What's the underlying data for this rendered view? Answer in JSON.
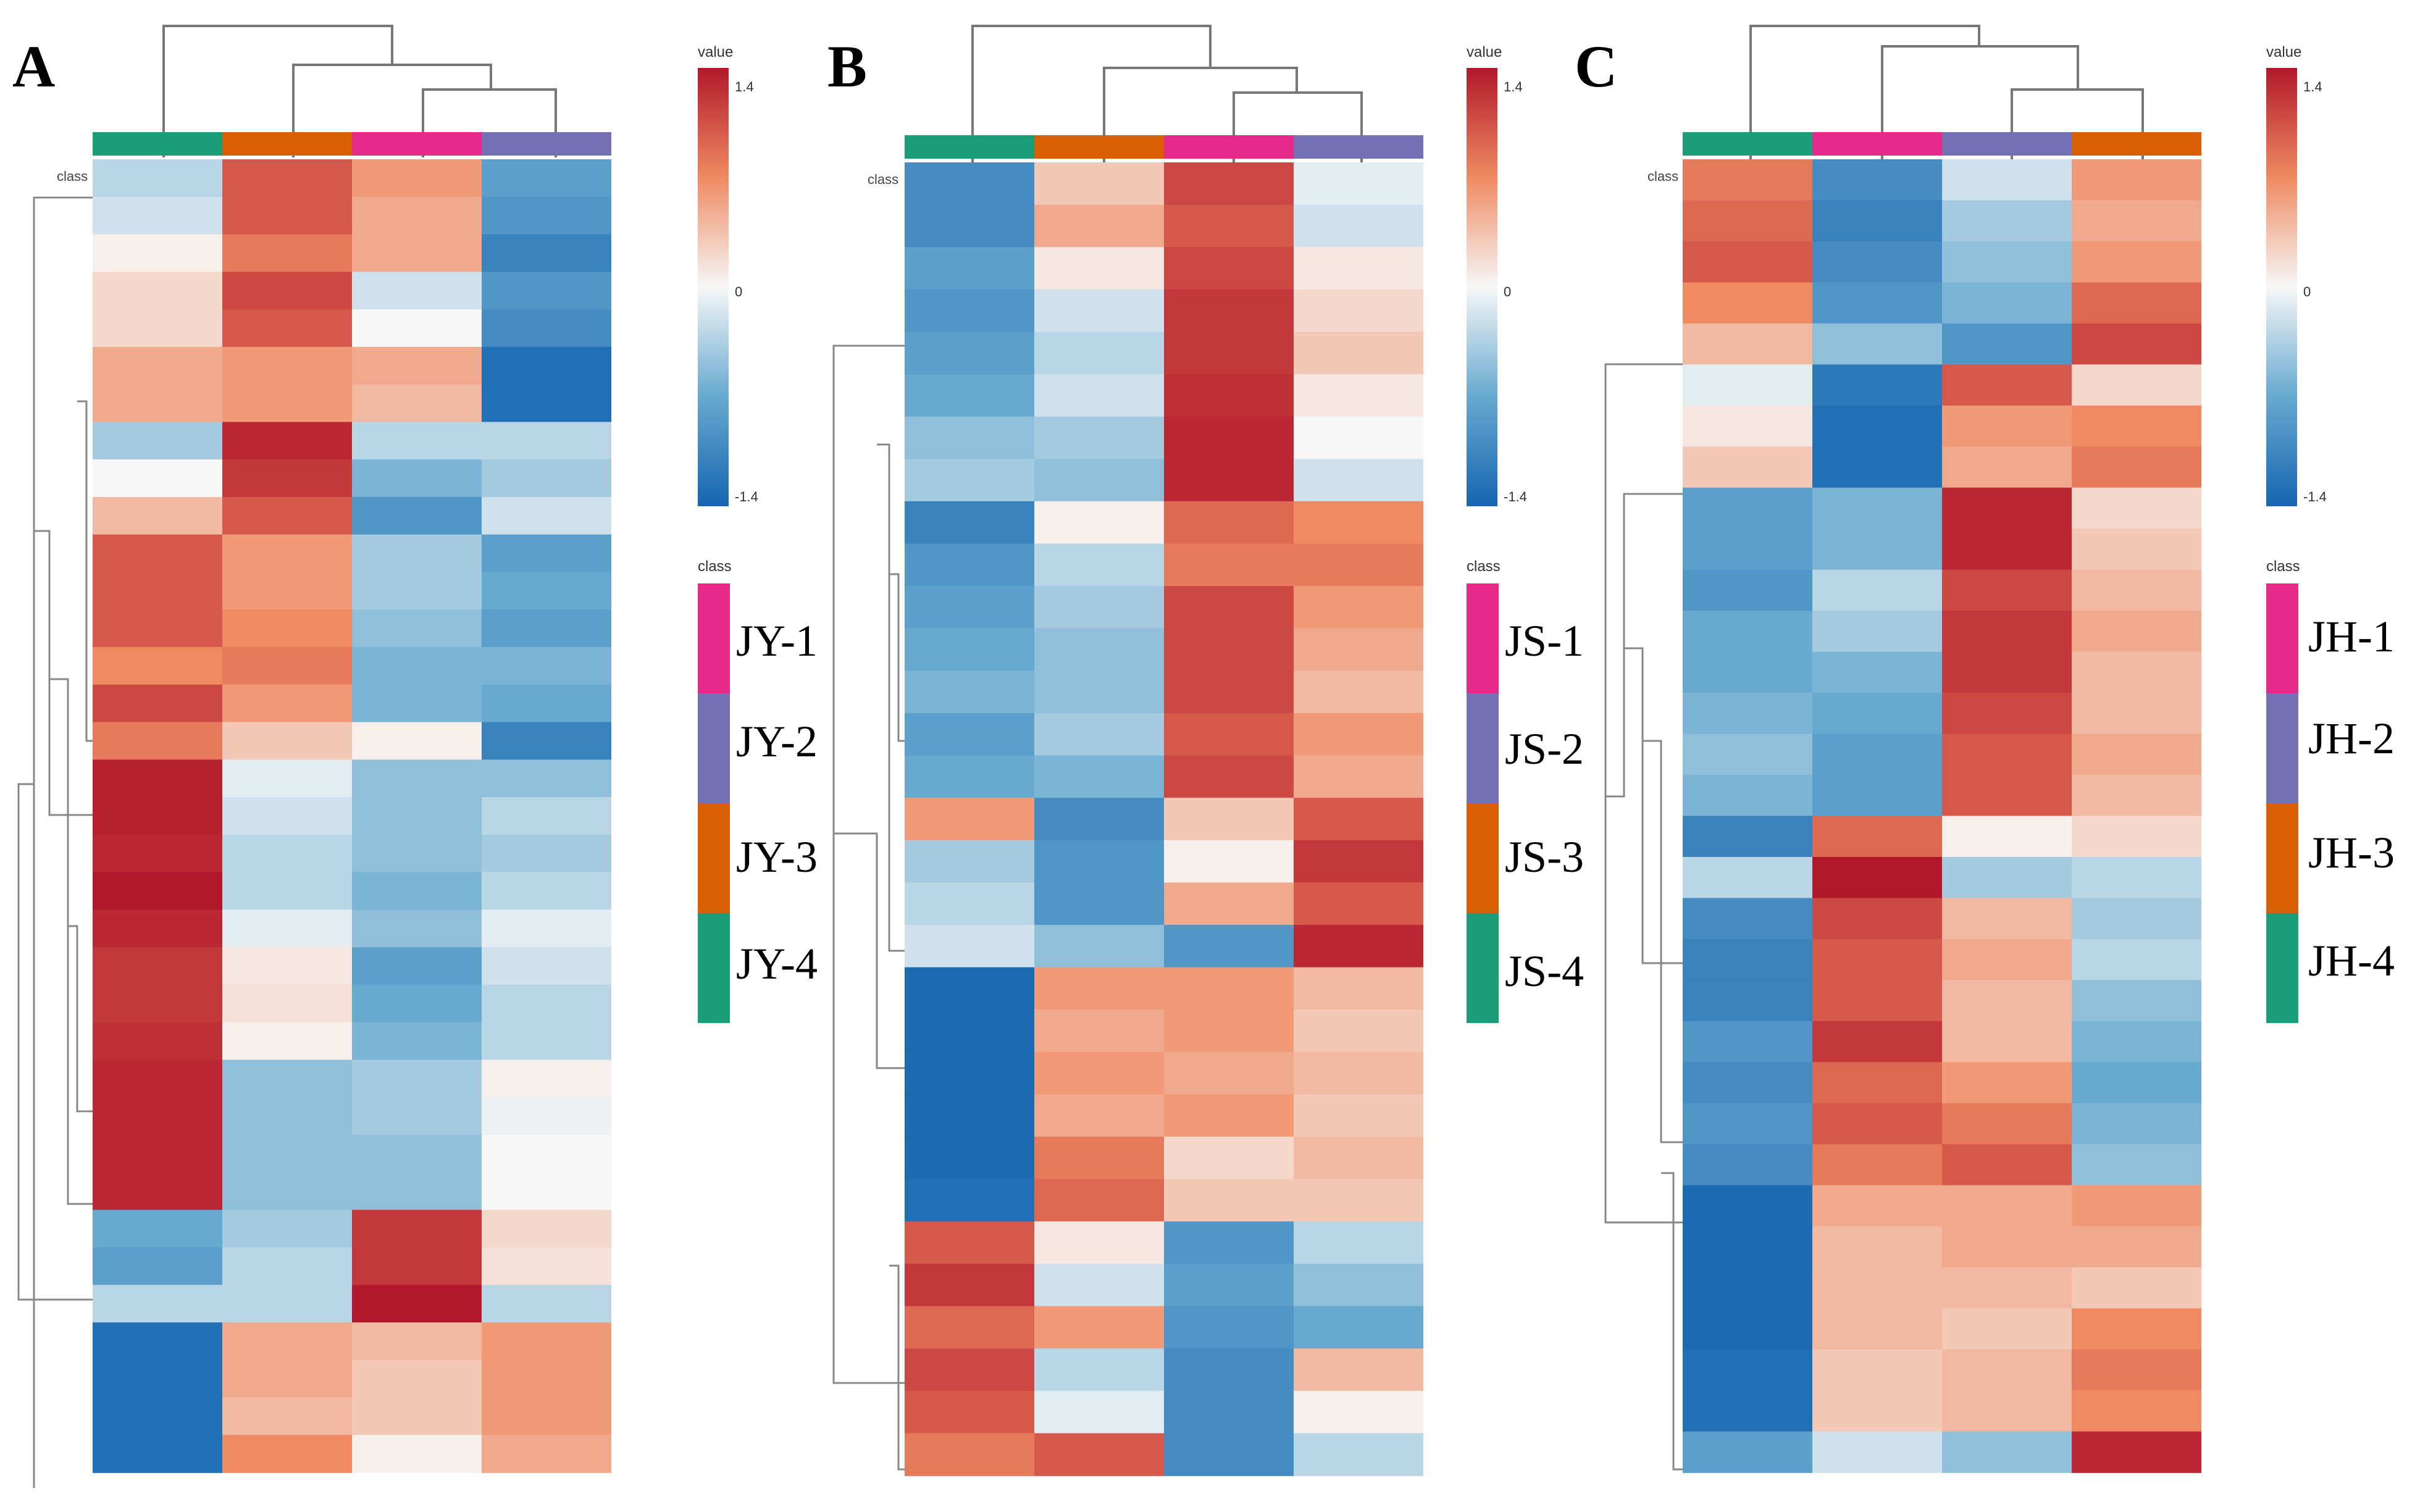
{
  "figure": {
    "title": ""
  },
  "chart_data": [
    {
      "type": "heatmap",
      "panel_label": "A",
      "class_label": "class",
      "column_classes": [
        "JY-4",
        "JY-3",
        "JY-1",
        "JY-2"
      ],
      "class_colors": {
        "1": "#E7298A",
        "2": "#7570B3",
        "3": "#D95F02",
        "4": "#1B9E77"
      },
      "legend_value": {
        "title": "value",
        "max_label": "1.4",
        "mid_label": "0",
        "min_label": "-1.4",
        "vmin": -1.4,
        "vmax": 1.4
      },
      "legend_class": {
        "title": "class",
        "entries": [
          "JY-1",
          "JY-2",
          "JY-3",
          "JY-4"
        ]
      },
      "columns_dendrogram": "JY-4 separate; ((JY-1, JY-2), JY-3)",
      "rows": [
        [
          -0.3,
          1.0,
          0.6,
          -0.8
        ],
        [
          -0.2,
          1.0,
          0.5,
          -0.9
        ],
        [
          0.05,
          0.8,
          0.5,
          -1.1
        ],
        [
          0.2,
          1.1,
          -0.2,
          -0.9
        ],
        [
          0.2,
          1.0,
          0.0,
          -1.0
        ],
        [
          0.5,
          0.6,
          0.5,
          -1.3
        ],
        [
          0.5,
          0.6,
          0.4,
          -1.3
        ],
        [
          -0.4,
          1.3,
          -0.3,
          -0.3
        ],
        [
          0.0,
          1.2,
          -0.6,
          -0.4
        ],
        [
          0.4,
          1.0,
          -0.9,
          -0.2
        ],
        [
          1.0,
          0.6,
          -0.4,
          -0.8
        ],
        [
          1.0,
          0.6,
          -0.4,
          -0.7
        ],
        [
          1.0,
          0.7,
          -0.5,
          -0.8
        ],
        [
          0.7,
          0.8,
          -0.6,
          -0.6
        ],
        [
          1.1,
          0.6,
          -0.6,
          -0.7
        ],
        [
          0.8,
          0.3,
          0.05,
          -1.1
        ],
        [
          1.35,
          -0.1,
          -0.5,
          -0.5
        ],
        [
          1.35,
          -0.2,
          -0.5,
          -0.3
        ],
        [
          1.3,
          -0.3,
          -0.5,
          -0.4
        ],
        [
          1.4,
          -0.3,
          -0.6,
          -0.3
        ],
        [
          1.3,
          -0.1,
          -0.5,
          -0.1
        ],
        [
          1.2,
          0.1,
          -0.8,
          -0.2
        ],
        [
          1.2,
          0.15,
          -0.7,
          -0.3
        ],
        [
          1.25,
          0.05,
          -0.6,
          -0.3
        ],
        [
          1.3,
          -0.5,
          -0.4,
          0.05
        ],
        [
          1.3,
          -0.5,
          -0.4,
          -0.05
        ],
        [
          1.3,
          -0.5,
          -0.5,
          0.0
        ],
        [
          1.3,
          -0.5,
          -0.5,
          0.0
        ],
        [
          -0.7,
          -0.4,
          1.2,
          0.2
        ],
        [
          -0.8,
          -0.3,
          1.2,
          0.15
        ],
        [
          -0.3,
          -0.3,
          1.4,
          -0.3
        ],
        [
          -1.3,
          0.5,
          0.4,
          0.6
        ],
        [
          -1.3,
          0.5,
          0.3,
          0.6
        ],
        [
          -1.3,
          0.4,
          0.3,
          0.6
        ],
        [
          -1.3,
          0.7,
          0.05,
          0.5
        ]
      ]
    },
    {
      "type": "heatmap",
      "panel_label": "B",
      "class_label": "class",
      "column_classes": [
        "JS-4",
        "JS-3",
        "JS-1",
        "JS-2"
      ],
      "class_colors": {
        "1": "#E7298A",
        "2": "#7570B3",
        "3": "#D95F02",
        "4": "#1B9E77"
      },
      "legend_value": {
        "title": "value",
        "max_label": "1.4",
        "mid_label": "0",
        "min_label": "-1.4",
        "vmin": -1.4,
        "vmax": 1.4
      },
      "legend_class": {
        "title": "class",
        "entries": [
          "JS-1",
          "JS-2",
          "JS-3",
          "JS-4"
        ]
      },
      "columns_dendrogram": "JS-4 separate; (JS-3, (JS-1, JS-2))",
      "rows": [
        [
          -1.0,
          0.3,
          1.1,
          -0.1
        ],
        [
          -1.0,
          0.5,
          1.0,
          -0.2
        ],
        [
          -0.8,
          0.1,
          1.1,
          0.1
        ],
        [
          -0.9,
          -0.2,
          1.2,
          0.2
        ],
        [
          -0.8,
          -0.3,
          1.2,
          0.3
        ],
        [
          -0.7,
          -0.2,
          1.25,
          0.1
        ],
        [
          -0.5,
          -0.4,
          1.3,
          0.0
        ],
        [
          -0.4,
          -0.5,
          1.3,
          -0.2
        ],
        [
          -1.1,
          0.05,
          0.9,
          0.7
        ],
        [
          -0.9,
          -0.3,
          0.8,
          0.8
        ],
        [
          -0.8,
          -0.4,
          1.1,
          0.6
        ],
        [
          -0.7,
          -0.5,
          1.1,
          0.5
        ],
        [
          -0.6,
          -0.5,
          1.1,
          0.4
        ],
        [
          -0.8,
          -0.4,
          1.0,
          0.6
        ],
        [
          -0.7,
          -0.6,
          1.1,
          0.5
        ],
        [
          0.6,
          -1.0,
          0.3,
          1.0
        ],
        [
          -0.4,
          -0.9,
          0.05,
          1.2
        ],
        [
          -0.3,
          -0.9,
          0.5,
          1.0
        ],
        [
          -0.2,
          -0.5,
          -0.9,
          1.3
        ],
        [
          -1.35,
          0.6,
          0.6,
          0.4
        ],
        [
          -1.35,
          0.5,
          0.6,
          0.3
        ],
        [
          -1.35,
          0.6,
          0.5,
          0.4
        ],
        [
          -1.35,
          0.5,
          0.6,
          0.3
        ],
        [
          -1.35,
          0.8,
          0.2,
          0.4
        ],
        [
          -1.3,
          0.9,
          0.3,
          0.3
        ],
        [
          1.0,
          0.1,
          -0.9,
          -0.3
        ],
        [
          1.2,
          -0.2,
          -0.8,
          -0.5
        ],
        [
          0.9,
          0.6,
          -0.9,
          -0.7
        ],
        [
          1.1,
          -0.3,
          -1.0,
          0.4
        ],
        [
          1.0,
          -0.1,
          -1.0,
          0.05
        ],
        [
          0.8,
          1.0,
          -1.0,
          -0.3
        ]
      ]
    },
    {
      "type": "heatmap",
      "panel_label": "C",
      "class_label": "class",
      "column_classes": [
        "JH-4",
        "JH-1",
        "JH-2",
        "JH-3"
      ],
      "class_colors": {
        "1": "#E7298A",
        "2": "#7570B3",
        "3": "#D95F02",
        "4": "#1B9E77"
      },
      "legend_value": {
        "title": "value",
        "max_label": "1.4",
        "mid_label": "0",
        "min_label": "-1.4",
        "vmin": -1.4,
        "vmax": 1.4
      },
      "legend_class": {
        "title": "class",
        "entries": [
          "JH-1",
          "JH-2",
          "JH-3",
          "JH-4"
        ]
      },
      "columns_dendrogram": "JH-4 separate; (JH-1, (JH-2, JH-3))",
      "rows": [
        [
          0.8,
          -1.0,
          -0.2,
          0.6
        ],
        [
          0.9,
          -1.1,
          -0.4,
          0.5
        ],
        [
          1.0,
          -1.0,
          -0.5,
          0.6
        ],
        [
          0.7,
          -0.9,
          -0.6,
          0.9
        ],
        [
          0.4,
          -0.5,
          -0.9,
          1.1
        ],
        [
          -0.1,
          -1.2,
          1.0,
          0.2
        ],
        [
          0.1,
          -1.3,
          0.6,
          0.7
        ],
        [
          0.3,
          -1.3,
          0.5,
          0.8
        ],
        [
          -0.8,
          -0.6,
          1.3,
          0.2
        ],
        [
          -0.8,
          -0.6,
          1.3,
          0.3
        ],
        [
          -0.9,
          -0.3,
          1.1,
          0.4
        ],
        [
          -0.7,
          -0.4,
          1.2,
          0.5
        ],
        [
          -0.7,
          -0.6,
          1.2,
          0.4
        ],
        [
          -0.6,
          -0.7,
          1.1,
          0.4
        ],
        [
          -0.5,
          -0.8,
          1.0,
          0.5
        ],
        [
          -0.6,
          -0.8,
          1.0,
          0.4
        ],
        [
          -1.1,
          0.9,
          0.05,
          0.2
        ],
        [
          -0.3,
          1.4,
          -0.4,
          -0.3
        ],
        [
          -1.0,
          1.1,
          0.4,
          -0.4
        ],
        [
          -1.1,
          1.0,
          0.5,
          -0.3
        ],
        [
          -1.1,
          1.0,
          0.4,
          -0.5
        ],
        [
          -0.9,
          1.2,
          0.4,
          -0.6
        ],
        [
          -1.0,
          0.9,
          0.6,
          -0.7
        ],
        [
          -0.9,
          1.0,
          0.8,
          -0.6
        ],
        [
          -1.0,
          0.8,
          1.0,
          -0.5
        ],
        [
          -1.35,
          0.5,
          0.5,
          0.6
        ],
        [
          -1.35,
          0.4,
          0.5,
          0.5
        ],
        [
          -1.35,
          0.4,
          0.4,
          0.3
        ],
        [
          -1.35,
          0.4,
          0.3,
          0.7
        ],
        [
          -1.3,
          0.3,
          0.4,
          0.8
        ],
        [
          -1.3,
          0.3,
          0.4,
          0.7
        ],
        [
          -0.8,
          -0.2,
          -0.5,
          1.3
        ]
      ]
    }
  ]
}
